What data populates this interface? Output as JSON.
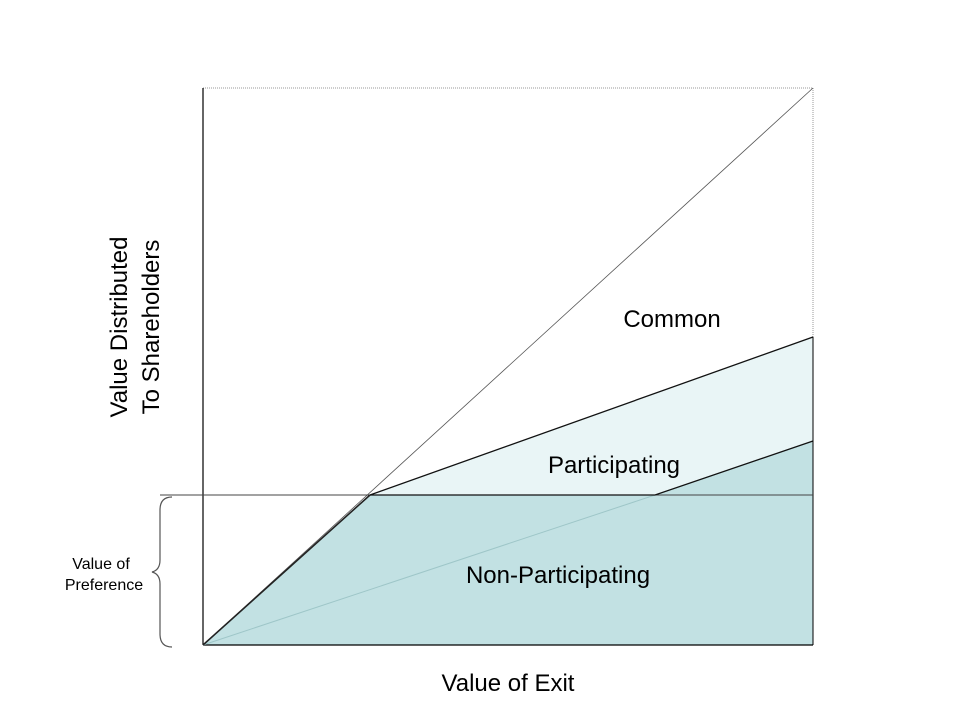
{
  "labels": {
    "y_axis_line1": "Value Distributed",
    "y_axis_line2": "To Shareholders",
    "x_axis": "Value of Exit",
    "preference_line1": "Value of",
    "preference_line2": "Preference",
    "region_common": "Common",
    "region_participating": "Participating",
    "region_non_participating": "Non-Participating"
  },
  "colors": {
    "non_participating_fill": "#c2e1e3",
    "participating_fill": "#e9f5f6",
    "line": "#000000"
  }
}
